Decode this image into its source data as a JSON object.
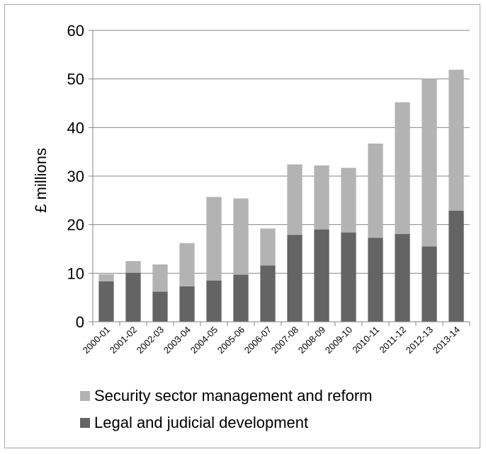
{
  "chart_data": {
    "type": "bar",
    "stacked": true,
    "categories": [
      "2000-01",
      "2001-02",
      "2002-03",
      "2003-04",
      "2004-05",
      "2005-06",
      "2006-07",
      "2007-08",
      "2008-09",
      "2009-10",
      "2010-11",
      "2011-12",
      "2012-13",
      "2013-14"
    ],
    "series": [
      {
        "name": "Legal and judicial development",
        "color": "#646464",
        "values": [
          8.3,
          10.1,
          6.2,
          7.3,
          8.5,
          9.7,
          11.6,
          17.9,
          19.0,
          18.4,
          17.3,
          18.1,
          15.5,
          22.9
        ]
      },
      {
        "name": "Security sector management and reform",
        "color": "#b3b3b3",
        "values": [
          1.5,
          2.4,
          5.6,
          8.9,
          17.2,
          15.7,
          7.6,
          14.5,
          13.2,
          13.3,
          19.4,
          27.1,
          34.5,
          29.0
        ]
      }
    ],
    "ylabel": "£ millions",
    "yticks": [
      0,
      10,
      20,
      30,
      40,
      50,
      60
    ],
    "ylim": [
      0,
      60
    ],
    "grid": true,
    "legend_position": "bottom",
    "axis_color": "#868686",
    "grid_color": "#868686"
  }
}
